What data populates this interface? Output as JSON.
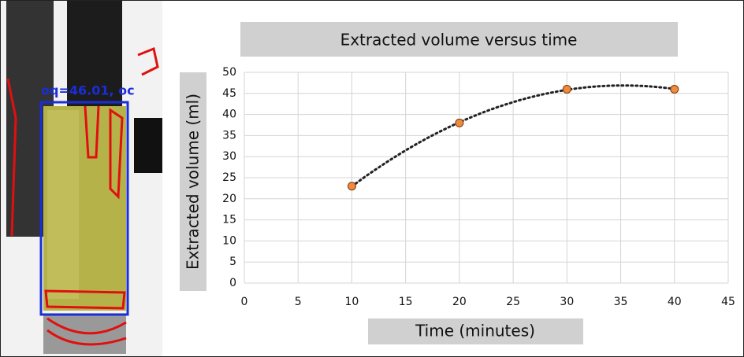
{
  "photo_label": "oq=46.01, oc",
  "chart_data": {
    "type": "scatter",
    "title": "Extracted volume versus time",
    "x_label": "Time  (minutes)",
    "y_label": "Extracted volume (ml)",
    "x": [
      10,
      20,
      30,
      40
    ],
    "values": [
      23,
      38,
      46,
      46
    ],
    "color": "#f08a3c",
    "trendline": "polynomial",
    "trend_color": "#222222",
    "xlim": [
      0,
      45
    ],
    "xticks": [
      0,
      5,
      10,
      15,
      20,
      25,
      30,
      35,
      40,
      45
    ],
    "ylim": [
      0,
      50
    ],
    "yticks": [
      0,
      5,
      10,
      15,
      20,
      25,
      30,
      35,
      40,
      45,
      50
    ],
    "grid": true
  }
}
